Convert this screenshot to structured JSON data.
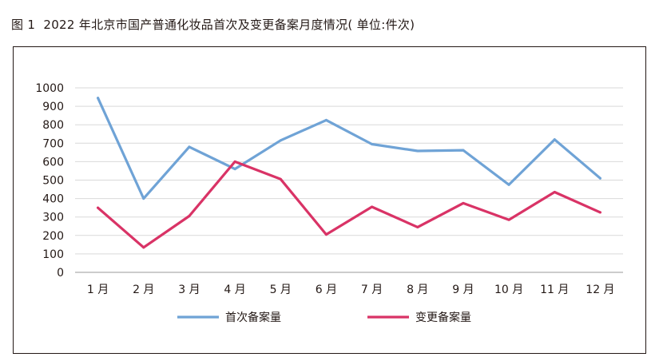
{
  "figure": {
    "number": "图 1",
    "title": "2022 年北京市国产普通化妆品首次及变更备案月度情况( 单位:件次)"
  },
  "chart_data": {
    "type": "line",
    "categories": [
      "1 月",
      "2 月",
      "3 月",
      "4 月",
      "5 月",
      "6 月",
      "7 月",
      "8 月",
      "9 月",
      "10 月",
      "11 月",
      "12 月"
    ],
    "series": [
      {
        "name": "首次备案量",
        "color": "#6fa3d6",
        "values": [
          945,
          400,
          680,
          560,
          715,
          825,
          695,
          658,
          662,
          475,
          720,
          510
        ]
      },
      {
        "name": "变更备案量",
        "color": "#d93366",
        "values": [
          350,
          135,
          305,
          600,
          505,
          205,
          355,
          245,
          375,
          285,
          435,
          325
        ]
      }
    ],
    "ylim": [
      0,
      1000
    ],
    "yticks": [
      0,
      100,
      200,
      300,
      400,
      500,
      600,
      700,
      800,
      900,
      1000
    ],
    "grid": true,
    "legend_position": "bottom"
  }
}
